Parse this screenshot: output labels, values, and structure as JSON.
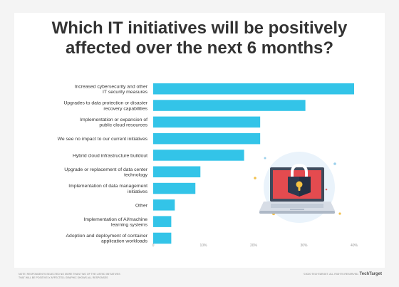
{
  "title_line1": "Which IT initiatives will be positively",
  "title_line2": "affected over the next 6 months?",
  "colors": {
    "bar": "#33c4e8",
    "text": "#333333",
    "axis": "#999999",
    "page_bg": "#f4f4f4"
  },
  "icon": "laptop-security-lock-icon",
  "footer": {
    "left": "NOTE: RESPONDENTS SELECTED NO MORE THAN TWO OF THE LISTED INITIATIVES THAT WILL BE POSITIVELY AFFECTED; GRAPHIC SHOWS ALL RESPONSES",
    "copyright": "©2020 TECHTARGET. ALL RIGHTS RESERVED.",
    "brand": "TechTarget"
  },
  "chart_data": {
    "type": "bar",
    "orientation": "horizontal",
    "categories": [
      "Increased cybersecurity and other\nIT security measures",
      "Upgrades to data protection or disaster\nrecovery capabilities",
      "Implementation or expansion of\npublic cloud resources",
      "We see no impact to our current initiatives",
      "Hybrid cloud infrastructure buildout",
      "Upgrade or replacement of data center\ntechnology",
      "Implementation of data management\ninitiatives",
      "Other",
      "Implementation of AI/machine\nlearning systems",
      "Adoption and deployment of container\napplication workloads"
    ],
    "values": [
      40,
      30.3,
      21.3,
      21.3,
      18.1,
      9.4,
      8.4,
      4.3,
      3.6,
      3.6
    ],
    "xlim": [
      0,
      40
    ],
    "xticks": [
      "0",
      "10%",
      "20%",
      "30%",
      "40%"
    ],
    "grid": false
  }
}
